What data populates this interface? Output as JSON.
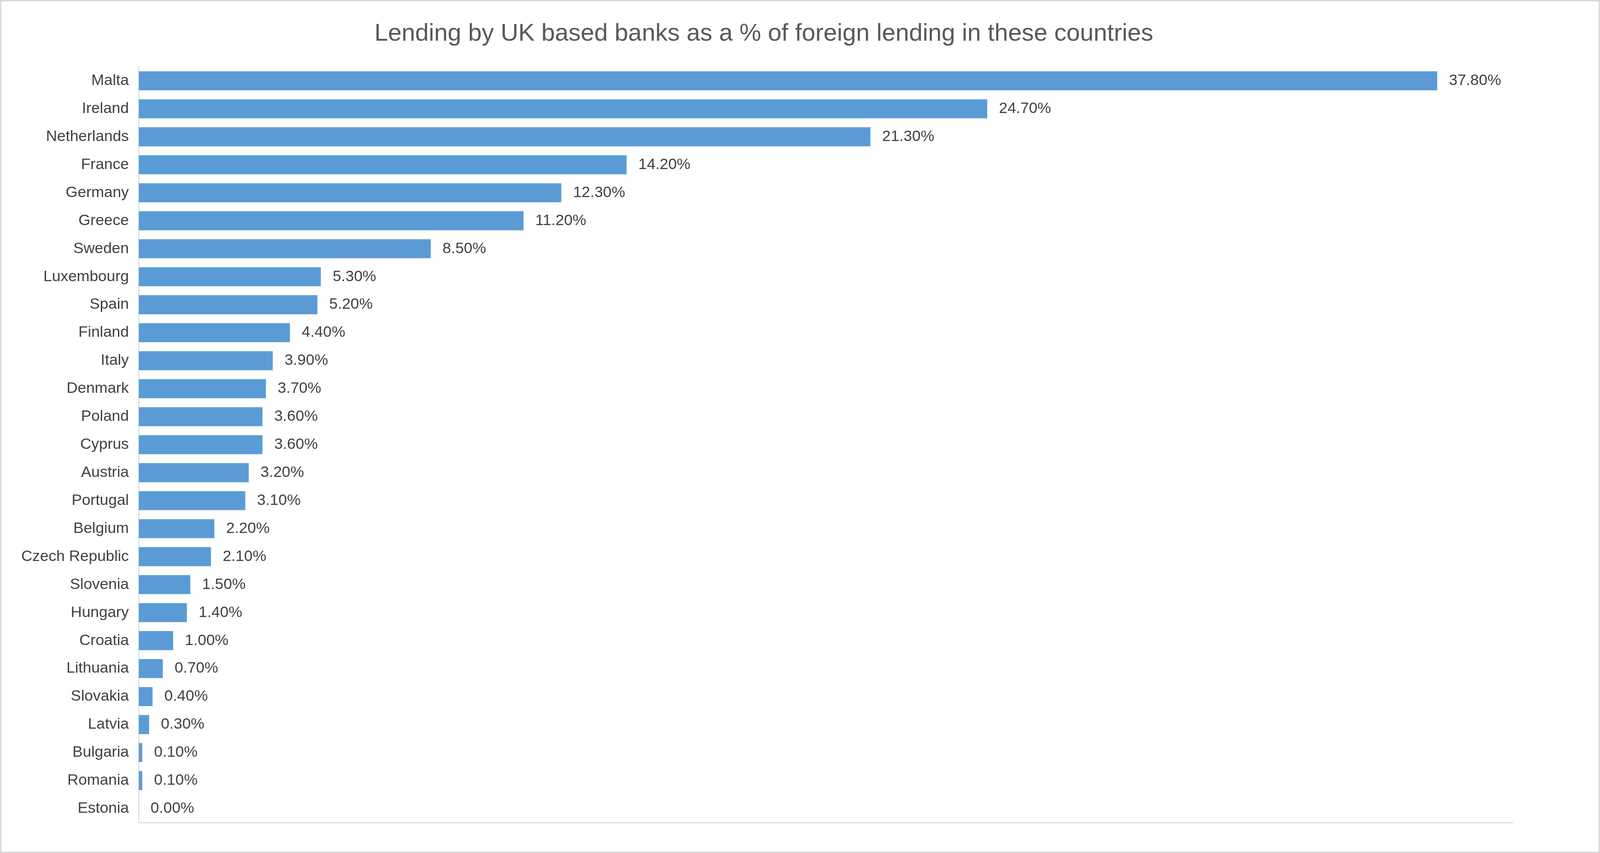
{
  "chart_data": {
    "type": "bar",
    "title": "Lending by UK based banks as a % of foreign lending in these countries",
    "orientation": "horizontal",
    "categories": [
      "Malta",
      "Ireland",
      "Netherlands",
      "France",
      "Germany",
      "Greece",
      "Sweden",
      "Luxembourg",
      "Spain",
      "Finland",
      "Italy",
      "Denmark",
      "Poland",
      "Cyprus",
      "Austria",
      "Portugal",
      "Belgium",
      "Czech Republic",
      "Slovenia",
      "Hungary",
      "Croatia",
      "Lithuania",
      "Slovakia",
      "Latvia",
      "Bulgaria",
      "Romania",
      "Estonia"
    ],
    "values": [
      37.8,
      24.7,
      21.3,
      14.2,
      12.3,
      11.2,
      8.5,
      5.3,
      5.2,
      4.4,
      3.9,
      3.7,
      3.6,
      3.6,
      3.2,
      3.1,
      2.2,
      2.1,
      1.5,
      1.4,
      1.0,
      0.7,
      0.4,
      0.3,
      0.1,
      0.1,
      0.0
    ],
    "value_labels": [
      "37.80%",
      "24.70%",
      "21.30%",
      "14.20%",
      "12.30%",
      "11.20%",
      "8.50%",
      "5.30%",
      "5.20%",
      "4.40%",
      "3.90%",
      "3.70%",
      "3.60%",
      "3.60%",
      "3.20%",
      "3.10%",
      "2.20%",
      "2.10%",
      "1.50%",
      "1.40%",
      "1.00%",
      "0.70%",
      "0.40%",
      "0.30%",
      "0.10%",
      "0.10%",
      "0.00%"
    ],
    "color": "#5b9bd5",
    "xlim": [
      0,
      40
    ],
    "grid": false,
    "data_labels": true,
    "tick_labels": "y"
  }
}
